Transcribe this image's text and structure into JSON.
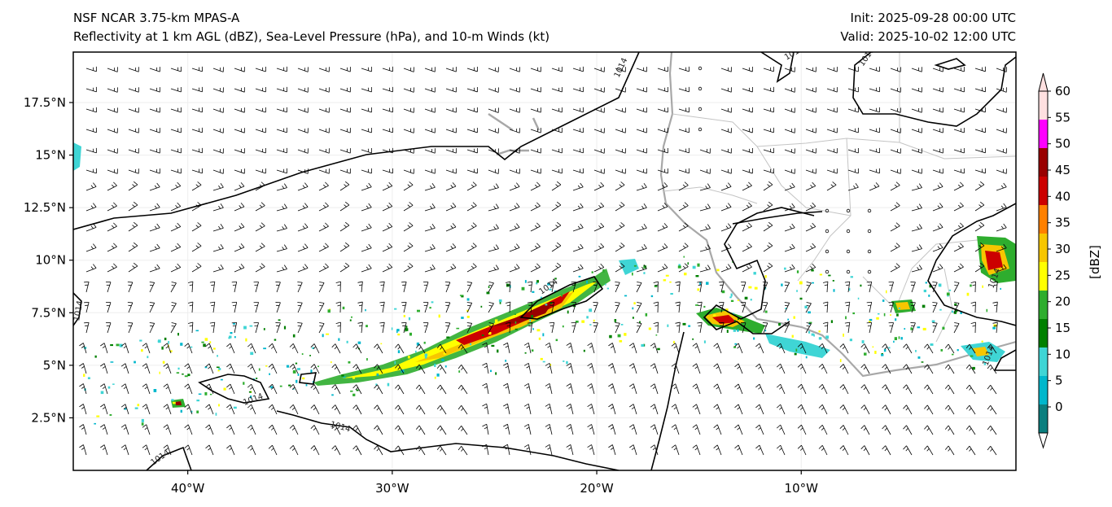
{
  "title_left_1": "NSF NCAR 3.75-km MPAS-A",
  "title_left_2": "Reflectivity at 1 km AGL (dBZ), Sea-Level Pressure (hPa), and 10-m Winds (kt)",
  "title_right_1": "Init: 2025-09-28 00:00 UTC",
  "title_right_2": "Valid: 2025-10-02 12:00 UTC",
  "lat_labels": [
    "17.5°N",
    "15°N",
    "12.5°N",
    "10°N",
    "7.5°N",
    "5°N",
    "2.5°N"
  ],
  "lat_values": [
    17.5,
    15,
    12.5,
    10,
    7.5,
    5,
    2.5
  ],
  "lon_labels": [
    "40°W",
    "30°W",
    "20°W",
    "10°W"
  ],
  "lon_values": [
    -40,
    -30,
    -20,
    -10
  ],
  "map_extent": {
    "lon_min": -45.6,
    "lon_max": 0.5,
    "lat_min": 0,
    "lat_max": 19.9
  },
  "isobar_label": "1014",
  "isobar_label_alt": "1010",
  "colorbar": {
    "label": "[dBZ]",
    "ticks": [
      "0",
      "5",
      "10",
      "15",
      "20",
      "25",
      "30",
      "35",
      "40",
      "45",
      "50",
      "55",
      "60"
    ],
    "colors": [
      "#ffffff",
      "#0b7f7f",
      "#00b7cc",
      "#3fd5d5",
      "#008000",
      "#2ead2e",
      "#ffff00",
      "#f7c600",
      "#ff8000",
      "#cc0000",
      "#990000",
      "#ff00ff",
      "#ffe0e0"
    ]
  }
}
